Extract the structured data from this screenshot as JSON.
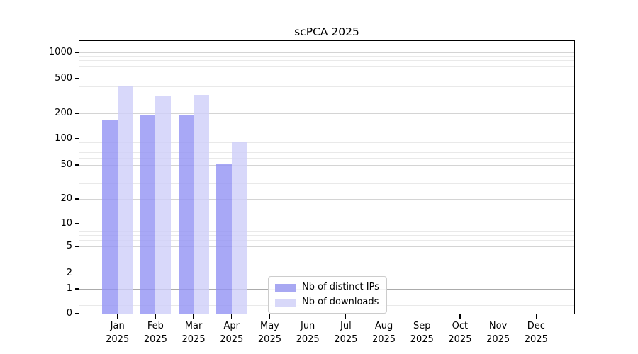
{
  "title": "scPCA 2025",
  "chart_data": {
    "type": "bar",
    "title": "scPCA 2025",
    "categories": [
      "Jan 2025",
      "Feb 2025",
      "Mar 2025",
      "Apr 2025",
      "May 2025",
      "Jun 2025",
      "Jul 2025",
      "Aug 2025",
      "Sep 2025",
      "Oct 2025",
      "Nov 2025",
      "Dec 2025"
    ],
    "series": [
      {
        "name": "Nb of distinct IPs",
        "color": "#a8a8f2",
        "fill_rgba": "rgba(146,146,244,0.8)",
        "values": [
          168,
          188,
          193,
          52,
          null,
          null,
          null,
          null,
          null,
          null,
          null,
          null
        ]
      },
      {
        "name": "Nb of downloads",
        "color": "#d8d8f9",
        "fill_rgba": "rgba(206,206,249,0.8)",
        "values": [
          410,
          319,
          323,
          91,
          null,
          null,
          null,
          null,
          null,
          null,
          null,
          null
        ]
      }
    ],
    "xlabel": "",
    "ylabel": "",
    "yaxis": {
      "scale": "symlog",
      "ticks": [
        0,
        1,
        2,
        5,
        10,
        20,
        50,
        100,
        200,
        500,
        1000
      ],
      "major_ticks": [
        1,
        10,
        100
      ],
      "ylim_bottom": 0
    },
    "grid": "horizontal, major + minor, grid below semi-transparent bars",
    "legend_position": "inside plot, lower middle-right",
    "colors": {
      "grid_major": "#ababab",
      "grid_medium": "#d4d4d4",
      "grid_minor": "#e9e9e9",
      "axis": "#000000",
      "legend_border": "#cccccc"
    }
  }
}
